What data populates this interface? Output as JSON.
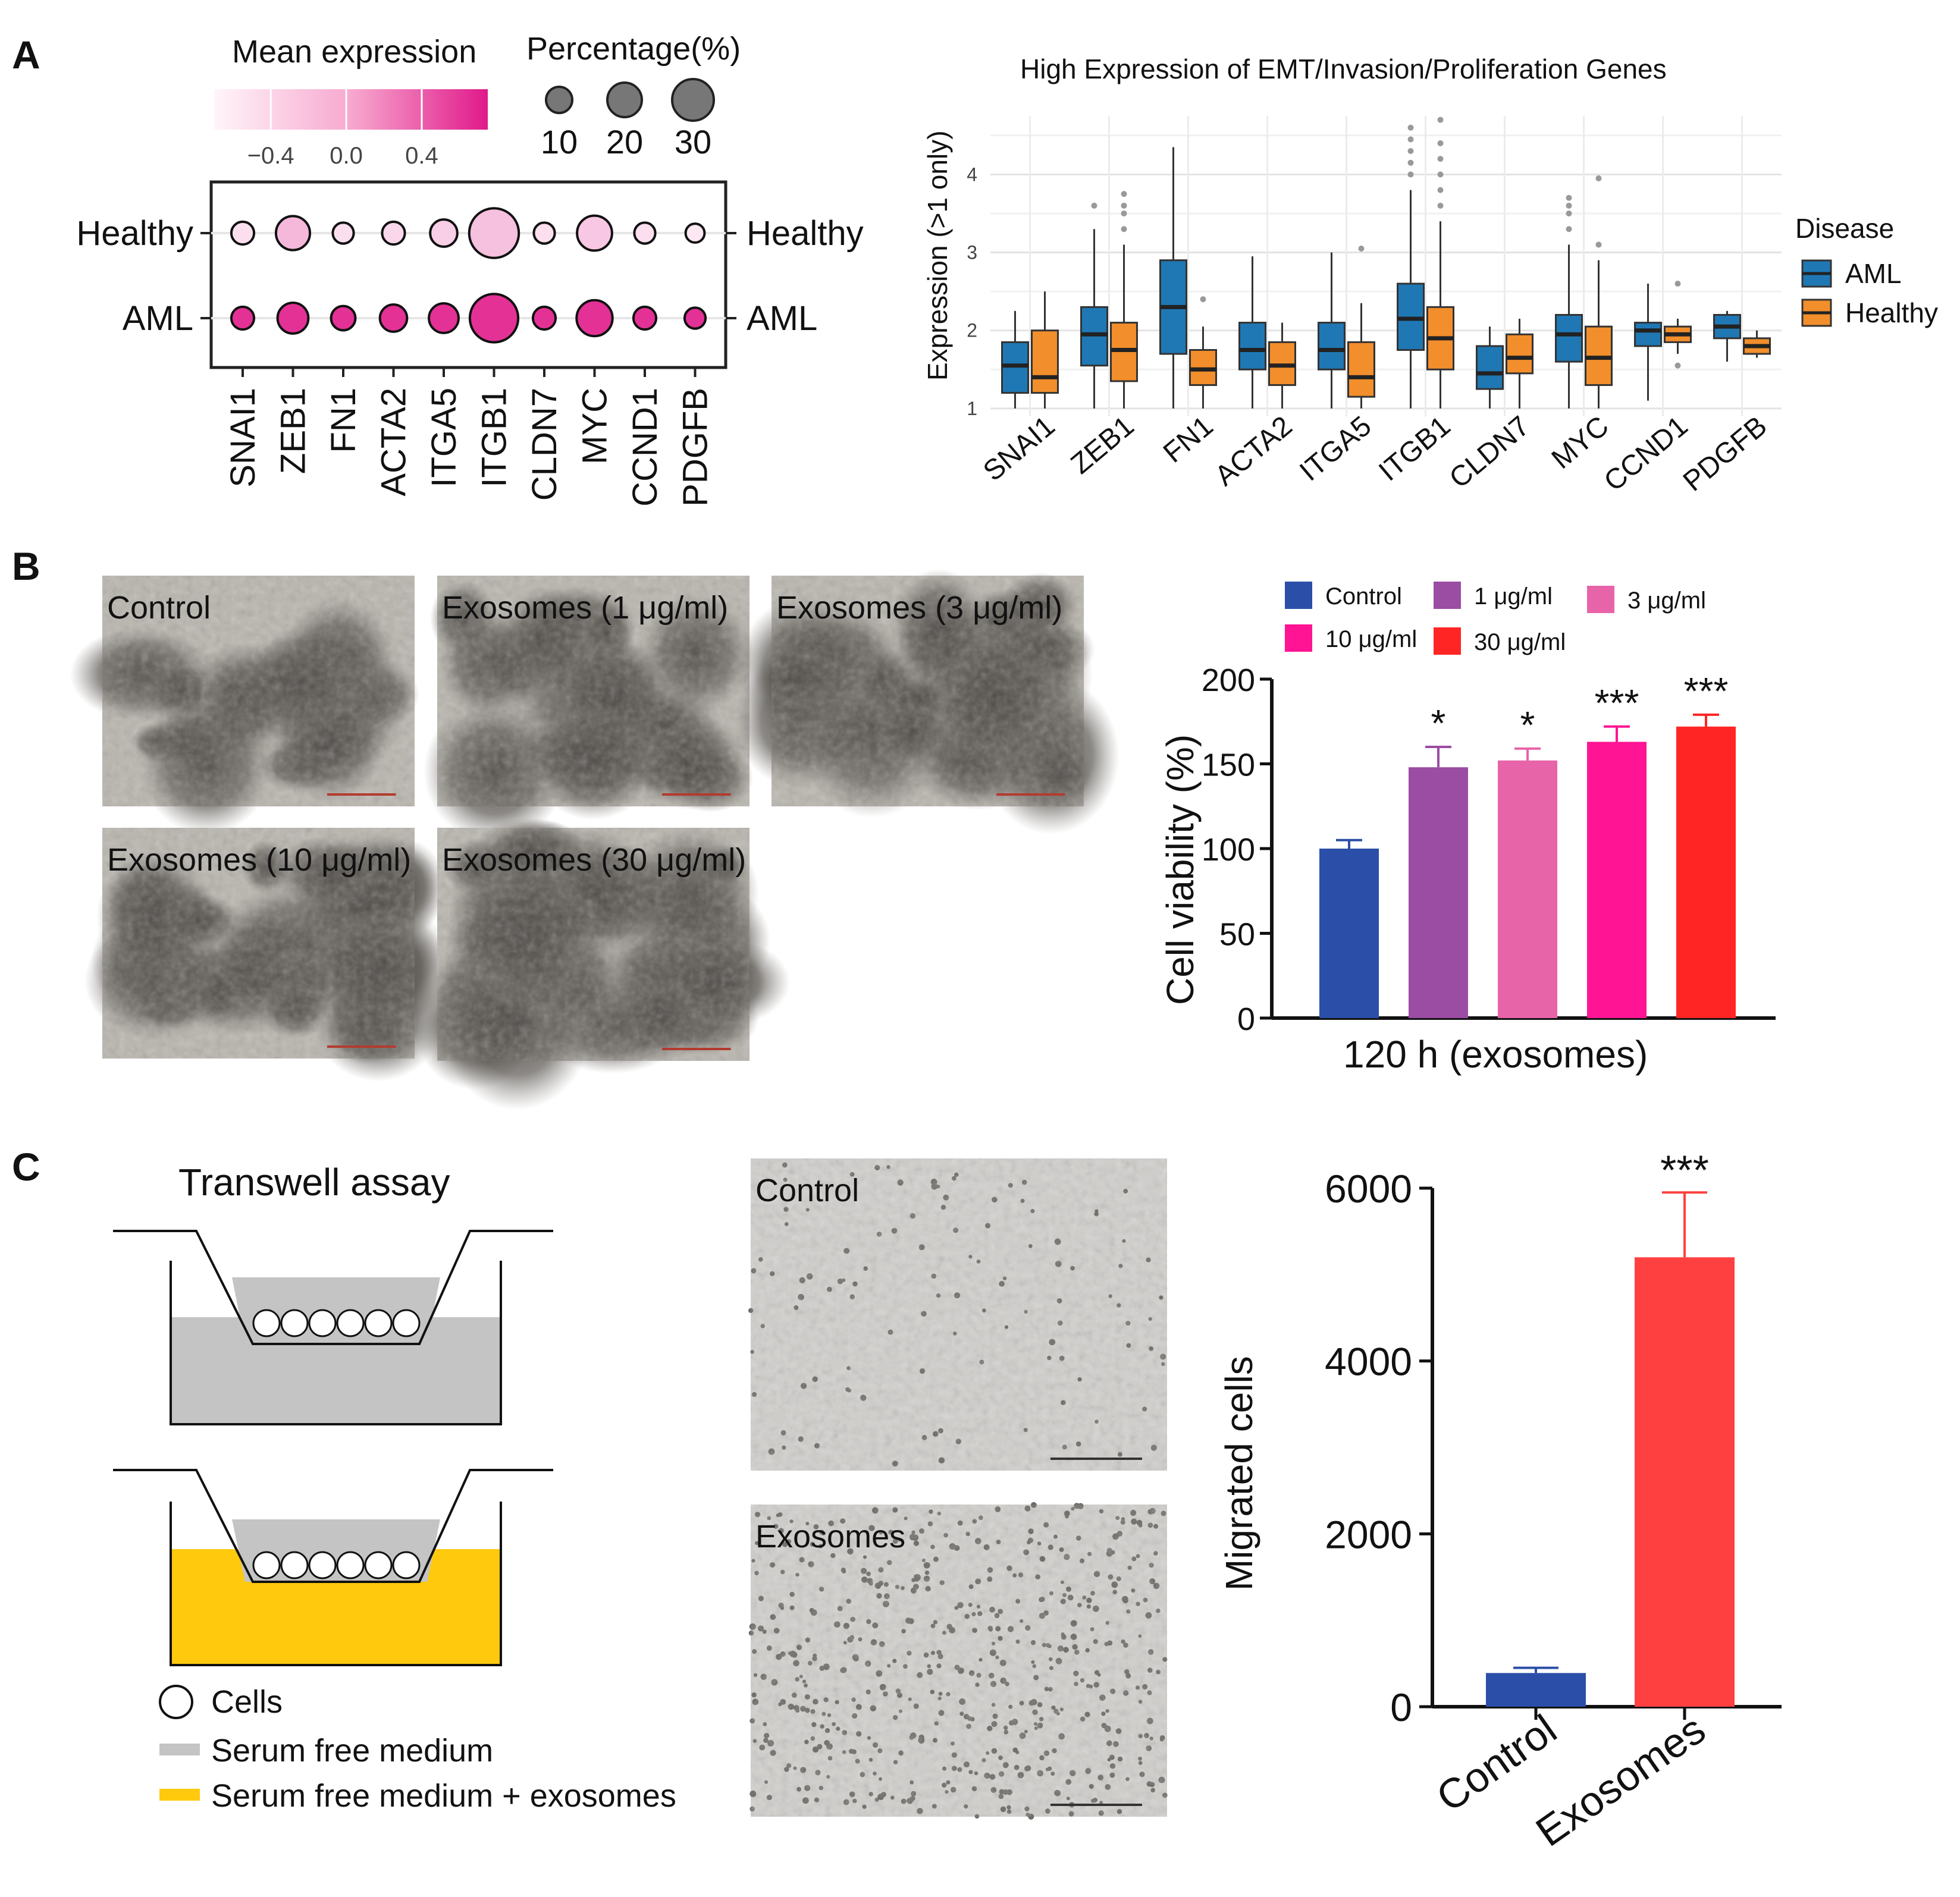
{
  "panels": {
    "a": "A",
    "b": "B",
    "c": "C"
  },
  "colors": {
    "aml": "#1f78b4",
    "healthy": "#f28e2b",
    "dot_aml": "#e0198a",
    "dot_healthy": "#fde4ef",
    "serum_free": "#c4c4c4",
    "exosome_medium": "#ffc90e",
    "bar_control": "#2b4fa8",
    "bar_exosomes": "#ff4040"
  },
  "dotplot": {
    "legend_mean_title": "Mean expression",
    "legend_mean_ticks": [
      "−0.4",
      "0.0",
      "0.4"
    ],
    "legend_pct_title": "Percentage(%)",
    "legend_pct_values": [
      "10",
      "20",
      "30"
    ],
    "rows": [
      "Healthy",
      "AML"
    ],
    "genes": [
      "SNAI1",
      "ZEB1",
      "FN1",
      "ACTA2",
      "ITGA5",
      "ITGB1",
      "CLDN7",
      "MYC",
      "CCND1",
      "PDGFB"
    ]
  },
  "boxplot": {
    "title": "High Expression of EMT/Invasion/Proliferation Genes",
    "ylabel": "Expression (>1 only)",
    "yticks": [
      "1",
      "2",
      "3",
      "4"
    ],
    "legend_title": "Disease",
    "legend_items": [
      "AML",
      "Healthy"
    ]
  },
  "micrographs_b": {
    "labels": [
      "Control",
      "Exosomes (1 μg/ml)",
      "Exosomes (3 μg/ml)",
      "Exosomes (10 μg/ml)",
      "Exosomes (30 μg/ml)"
    ]
  },
  "viability": {
    "legend": [
      "Control",
      "1 μg/ml",
      "3 μg/ml",
      "10 μg/ml",
      "30 μg/ml"
    ],
    "ylabel": "Cell viability (%)",
    "xlabel": "120 h (exosomes)",
    "yticks": [
      "0",
      "50",
      "100",
      "150",
      "200"
    ],
    "significance": [
      "*",
      "*",
      "***",
      "***"
    ]
  },
  "transwell": {
    "title": "Transwell assay",
    "legend": [
      "Cells",
      "Serum free medium",
      "Serum free medium + exosomes"
    ]
  },
  "micrographs_c": {
    "labels": [
      "Control",
      "Exosomes"
    ]
  },
  "migration": {
    "ylabel": "Migrated cells",
    "yticks": [
      "0",
      "2000",
      "4000",
      "6000"
    ],
    "categories": [
      "Control",
      "Exosomes"
    ],
    "significance": "***"
  },
  "chart_data": [
    {
      "type": "dotplot",
      "title": "",
      "categories": [
        "SNAI1",
        "ZEB1",
        "FN1",
        "ACTA2",
        "ITGA5",
        "ITGB1",
        "CLDN7",
        "MYC",
        "CCND1",
        "PDGFB"
      ],
      "series": [
        {
          "name": "Healthy",
          "mean_expression": [
            -0.5,
            -0.25,
            -0.5,
            -0.45,
            -0.4,
            -0.3,
            -0.5,
            -0.35,
            -0.5,
            -0.55
          ],
          "percentage": [
            5,
            14,
            4,
            5,
            8,
            34,
            4,
            15,
            4,
            3
          ]
        },
        {
          "name": "AML",
          "mean_expression": [
            0.6,
            0.6,
            0.6,
            0.6,
            0.6,
            0.6,
            0.6,
            0.6,
            0.6,
            0.6
          ],
          "percentage": [
            5,
            11,
            6,
            8,
            10,
            32,
            5,
            16,
            5,
            4
          ]
        }
      ],
      "color_range": [
        -0.7,
        0.75
      ],
      "size_legend": [
        10,
        20,
        30
      ]
    },
    {
      "type": "box",
      "title": "High Expression of EMT/Invasion/Proliferation Genes",
      "xlabel": "",
      "ylabel": "Expression (>1 only)",
      "ylim": [
        0.9,
        4.75
      ],
      "categories": [
        "SNAI1",
        "ZEB1",
        "FN1",
        "ACTA2",
        "ITGA5",
        "ITGB1",
        "CLDN7",
        "MYC",
        "CCND1",
        "PDGFB"
      ],
      "series": [
        {
          "name": "AML",
          "boxes": [
            {
              "min": 1.0,
              "q1": 1.2,
              "median": 1.55,
              "q3": 1.85,
              "max": 2.25,
              "outliers": []
            },
            {
              "min": 1.0,
              "q1": 1.55,
              "median": 1.95,
              "q3": 2.3,
              "max": 3.3,
              "outliers": [
                3.6
              ]
            },
            {
              "min": 1.0,
              "q1": 1.7,
              "median": 2.3,
              "q3": 2.9,
              "max": 4.35,
              "outliers": []
            },
            {
              "min": 1.0,
              "q1": 1.5,
              "median": 1.75,
              "q3": 2.1,
              "max": 2.95,
              "outliers": []
            },
            {
              "min": 1.0,
              "q1": 1.5,
              "median": 1.75,
              "q3": 2.1,
              "max": 3.0,
              "outliers": []
            },
            {
              "min": 1.0,
              "q1": 1.75,
              "median": 2.15,
              "q3": 2.6,
              "max": 3.8,
              "outliers": [
                4.0,
                4.15,
                4.3,
                4.45,
                4.6
              ]
            },
            {
              "min": 1.0,
              "q1": 1.25,
              "median": 1.45,
              "q3": 1.8,
              "max": 2.05,
              "outliers": []
            },
            {
              "min": 1.0,
              "q1": 1.6,
              "median": 1.95,
              "q3": 2.2,
              "max": 3.1,
              "outliers": [
                3.3,
                3.5,
                3.6,
                3.7
              ]
            },
            {
              "min": 1.1,
              "q1": 1.8,
              "median": 2.0,
              "q3": 2.1,
              "max": 2.6,
              "outliers": []
            },
            {
              "min": 1.6,
              "q1": 1.9,
              "median": 2.05,
              "q3": 2.2,
              "max": 2.25,
              "outliers": []
            }
          ]
        },
        {
          "name": "Healthy",
          "boxes": [
            {
              "min": 1.0,
              "q1": 1.2,
              "median": 1.4,
              "q3": 2.0,
              "max": 2.5,
              "outliers": []
            },
            {
              "min": 1.0,
              "q1": 1.35,
              "median": 1.75,
              "q3": 2.1,
              "max": 3.1,
              "outliers": [
                3.3,
                3.5,
                3.6,
                3.75
              ]
            },
            {
              "min": 1.0,
              "q1": 1.3,
              "median": 1.5,
              "q3": 1.75,
              "max": 2.05,
              "outliers": [
                2.4
              ]
            },
            {
              "min": 1.0,
              "q1": 1.3,
              "median": 1.55,
              "q3": 1.85,
              "max": 2.1,
              "outliers": []
            },
            {
              "min": 1.0,
              "q1": 1.15,
              "median": 1.4,
              "q3": 1.85,
              "max": 2.35,
              "outliers": [
                3.05
              ]
            },
            {
              "min": 1.0,
              "q1": 1.5,
              "median": 1.9,
              "q3": 2.3,
              "max": 3.4,
              "outliers": [
                3.6,
                3.8,
                4.0,
                4.2,
                4.4,
                4.7
              ]
            },
            {
              "min": 1.0,
              "q1": 1.45,
              "median": 1.65,
              "q3": 1.95,
              "max": 2.15,
              "outliers": []
            },
            {
              "min": 1.0,
              "q1": 1.3,
              "median": 1.65,
              "q3": 2.05,
              "max": 2.9,
              "outliers": [
                3.1,
                3.95
              ]
            },
            {
              "min": 1.7,
              "q1": 1.85,
              "median": 1.95,
              "q3": 2.05,
              "max": 2.15,
              "outliers": [
                1.55,
                2.6
              ]
            },
            {
              "min": 1.65,
              "q1": 1.7,
              "median": 1.8,
              "q3": 1.9,
              "max": 2.0,
              "outliers": []
            }
          ]
        }
      ]
    },
    {
      "type": "bar",
      "title": "",
      "xlabel": "120 h (exosomes)",
      "ylabel": "Cell viability (%)",
      "ylim": [
        0,
        200
      ],
      "categories": [
        "Control",
        "1 μg/ml",
        "3 μg/ml",
        "10 μg/ml",
        "30 μg/ml"
      ],
      "values": [
        100,
        148,
        152,
        163,
        172
      ],
      "errors": [
        5,
        12,
        7,
        9,
        7
      ],
      "significance": [
        "",
        "*",
        "*",
        "***",
        "***"
      ],
      "colors": [
        "#2b4fa8",
        "#9b4ca3",
        "#e864a9",
        "#ff1493",
        "#ff2525"
      ]
    },
    {
      "type": "bar",
      "title": "",
      "xlabel": "",
      "ylabel": "Migrated cells",
      "ylim": [
        0,
        6000
      ],
      "categories": [
        "Control",
        "Exosomes"
      ],
      "values": [
        390,
        5200
      ],
      "errors": [
        60,
        750
      ],
      "significance": [
        "",
        "***"
      ]
    }
  ]
}
